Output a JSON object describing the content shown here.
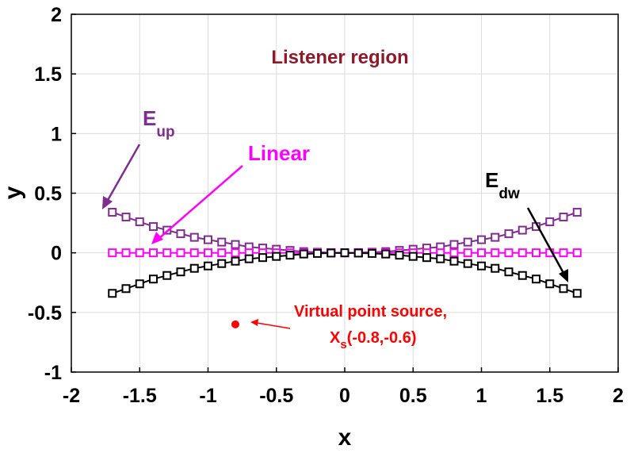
{
  "chart_data": {
    "type": "line",
    "xlabel": "x",
    "ylabel": "y",
    "xlim": [
      -2,
      2
    ],
    "ylim": [
      -1,
      2
    ],
    "grid": true,
    "xticks": [
      "-2",
      "-1.5",
      "-1",
      "-0.5",
      "0",
      "0.5",
      "1",
      "1.5",
      "2"
    ],
    "yticks": [
      "-1",
      "-0.5",
      "0",
      "0.5",
      "1",
      "1.5",
      "2"
    ],
    "x": [
      -1.7,
      -1.6,
      -1.5,
      -1.4,
      -1.3,
      -1.2,
      -1.1,
      -1.0,
      -0.9,
      -0.8,
      -0.7,
      -0.6,
      -0.5,
      -0.4,
      -0.3,
      -0.2,
      -0.1,
      0.0,
      0.1,
      0.2,
      0.3,
      0.4,
      0.5,
      0.6,
      0.7,
      0.8,
      0.9,
      1.0,
      1.1,
      1.2,
      1.3,
      1.4,
      1.5,
      1.6,
      1.7
    ],
    "series": [
      {
        "name": "Eup",
        "color": "#7e2f8e",
        "values": [
          0.34,
          0.3,
          0.26,
          0.22,
          0.19,
          0.16,
          0.13,
          0.11,
          0.09,
          0.07,
          0.05,
          0.04,
          0.03,
          0.02,
          0.01,
          0.005,
          0.002,
          0.0,
          0.002,
          0.005,
          0.01,
          0.02,
          0.03,
          0.04,
          0.05,
          0.07,
          0.09,
          0.11,
          0.13,
          0.16,
          0.19,
          0.22,
          0.26,
          0.3,
          0.34
        ]
      },
      {
        "name": "Linear",
        "color": "#ff00ff",
        "values": [
          0,
          0,
          0,
          0,
          0,
          0,
          0,
          0,
          0,
          0,
          0,
          0,
          0,
          0,
          0,
          0,
          0,
          0,
          0,
          0,
          0,
          0,
          0,
          0,
          0,
          0,
          0,
          0,
          0,
          0,
          0,
          0,
          0,
          0,
          0
        ]
      },
      {
        "name": "Edw",
        "color": "#000000",
        "values": [
          -0.34,
          -0.3,
          -0.26,
          -0.22,
          -0.19,
          -0.16,
          -0.13,
          -0.11,
          -0.09,
          -0.07,
          -0.05,
          -0.04,
          -0.03,
          -0.02,
          -0.01,
          -0.005,
          -0.002,
          0.0,
          -0.002,
          -0.005,
          -0.01,
          -0.02,
          -0.03,
          -0.04,
          -0.05,
          -0.07,
          -0.09,
          -0.11,
          -0.13,
          -0.16,
          -0.19,
          -0.22,
          -0.26,
          -0.3,
          -0.34
        ]
      }
    ],
    "point_source": {
      "x": -0.8,
      "y": -0.6,
      "color": "#ff0000"
    },
    "annotations": {
      "listener": "Listener region",
      "eup_main": "E",
      "eup_sub": "up",
      "linear": "Linear",
      "edw_main": "E",
      "edw_sub": "dw",
      "source_line1": "Virtual point source,",
      "source_line2_main": "X",
      "source_line2_sub": "s",
      "source_line2_rest": "(-0.8,-0.6)"
    },
    "annotation_colors": {
      "listener": "#8b1a2b",
      "eup": "#7e2f8e",
      "linear": "#ff00ff",
      "edw": "#000000",
      "source": "#ff0000"
    }
  }
}
